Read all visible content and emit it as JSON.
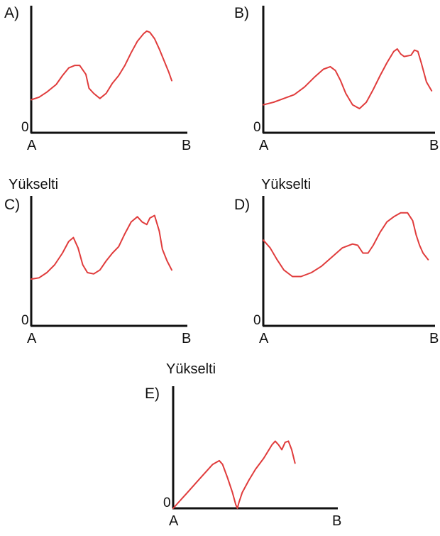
{
  "question": {
    "axis_word": "Yükselti",
    "origin_label": "0",
    "start_label": "A",
    "end_label": "B"
  },
  "chart_data": [
    {
      "type": "line",
      "option": "A)",
      "ylabel": "",
      "xlabel_start": "A",
      "xlabel_end": "B",
      "y_origin": "0",
      "xlim": [
        0,
        1
      ],
      "ylim": [
        0,
        1
      ],
      "grid": false,
      "series": [
        {
          "color": "#e03c3c",
          "x": [
            0.0,
            0.05,
            0.1,
            0.16,
            0.2,
            0.24,
            0.28,
            0.31,
            0.35,
            0.37,
            0.4,
            0.44,
            0.48,
            0.52,
            0.56,
            0.6,
            0.64,
            0.68,
            0.72,
            0.74,
            0.76,
            0.79,
            0.82,
            0.85,
            0.88,
            0.9
          ],
          "y": [
            0.26,
            0.28,
            0.32,
            0.38,
            0.45,
            0.51,
            0.53,
            0.53,
            0.46,
            0.35,
            0.31,
            0.27,
            0.31,
            0.39,
            0.45,
            0.53,
            0.63,
            0.72,
            0.78,
            0.8,
            0.79,
            0.74,
            0.66,
            0.57,
            0.48,
            0.41
          ]
        }
      ]
    },
    {
      "type": "line",
      "option": "B)",
      "ylabel": "",
      "xlabel_start": "A",
      "xlabel_end": "B",
      "y_origin": "0",
      "xlim": [
        0,
        1
      ],
      "ylim": [
        0,
        1
      ],
      "grid": false,
      "series": [
        {
          "color": "#e03c3c",
          "x": [
            0.0,
            0.06,
            0.12,
            0.18,
            0.24,
            0.3,
            0.35,
            0.39,
            0.42,
            0.45,
            0.48,
            0.52,
            0.56,
            0.6,
            0.64,
            0.68,
            0.72,
            0.76,
            0.78,
            0.8,
            0.82,
            0.86,
            0.88,
            0.9,
            0.92,
            0.95,
            0.98
          ],
          "y": [
            0.22,
            0.24,
            0.27,
            0.3,
            0.36,
            0.44,
            0.5,
            0.52,
            0.49,
            0.41,
            0.31,
            0.22,
            0.19,
            0.24,
            0.34,
            0.45,
            0.55,
            0.64,
            0.66,
            0.62,
            0.6,
            0.61,
            0.65,
            0.64,
            0.55,
            0.4,
            0.33
          ]
        }
      ]
    },
    {
      "type": "line",
      "option": "C)",
      "ylabel": "Yükselti",
      "xlabel_start": "A",
      "xlabel_end": "B",
      "y_origin": "0",
      "xlim": [
        0,
        1
      ],
      "ylim": [
        0,
        1
      ],
      "grid": false,
      "series": [
        {
          "color": "#e03c3c",
          "x": [
            0.0,
            0.05,
            0.1,
            0.15,
            0.2,
            0.24,
            0.27,
            0.3,
            0.33,
            0.36,
            0.4,
            0.44,
            0.48,
            0.52,
            0.56,
            0.6,
            0.64,
            0.68,
            0.71,
            0.74,
            0.76,
            0.79,
            0.82,
            0.84,
            0.87,
            0.9
          ],
          "y": [
            0.36,
            0.37,
            0.41,
            0.47,
            0.56,
            0.65,
            0.68,
            0.6,
            0.47,
            0.41,
            0.4,
            0.43,
            0.5,
            0.56,
            0.61,
            0.71,
            0.8,
            0.84,
            0.8,
            0.78,
            0.83,
            0.85,
            0.73,
            0.59,
            0.5,
            0.43
          ]
        }
      ]
    },
    {
      "type": "line",
      "option": "D)",
      "ylabel": "Yükselti",
      "xlabel_start": "A",
      "xlabel_end": "B",
      "y_origin": "0",
      "xlim": [
        0,
        1
      ],
      "ylim": [
        0,
        1
      ],
      "grid": false,
      "series": [
        {
          "color": "#e03c3c",
          "x": [
            0.0,
            0.04,
            0.08,
            0.12,
            0.17,
            0.22,
            0.28,
            0.34,
            0.4,
            0.46,
            0.52,
            0.55,
            0.58,
            0.61,
            0.64,
            0.68,
            0.72,
            0.76,
            0.8,
            0.84,
            0.87,
            0.89,
            0.91,
            0.93,
            0.96
          ],
          "y": [
            0.66,
            0.6,
            0.51,
            0.43,
            0.38,
            0.38,
            0.41,
            0.46,
            0.53,
            0.6,
            0.63,
            0.62,
            0.56,
            0.56,
            0.62,
            0.72,
            0.8,
            0.84,
            0.87,
            0.87,
            0.81,
            0.7,
            0.62,
            0.56,
            0.51
          ]
        }
      ]
    },
    {
      "type": "line",
      "option": "E)",
      "ylabel": "Yükselti",
      "xlabel_start": "A",
      "xlabel_end": "B",
      "y_origin": "0",
      "xlim": [
        0,
        1
      ],
      "ylim": [
        0,
        1
      ],
      "grid": false,
      "series": [
        {
          "color": "#e03c3c",
          "x": [
            0.0,
            0.08,
            0.16,
            0.24,
            0.28,
            0.3,
            0.33,
            0.36,
            0.38,
            0.39,
            0.4,
            0.42,
            0.46,
            0.5,
            0.55,
            0.6,
            0.62,
            0.64,
            0.66,
            0.68,
            0.7,
            0.72,
            0.74
          ],
          "y": [
            0.0,
            0.12,
            0.24,
            0.36,
            0.39,
            0.36,
            0.25,
            0.13,
            0.03,
            0.0,
            0.05,
            0.13,
            0.23,
            0.32,
            0.41,
            0.52,
            0.55,
            0.52,
            0.48,
            0.54,
            0.55,
            0.48,
            0.37
          ]
        }
      ]
    }
  ]
}
